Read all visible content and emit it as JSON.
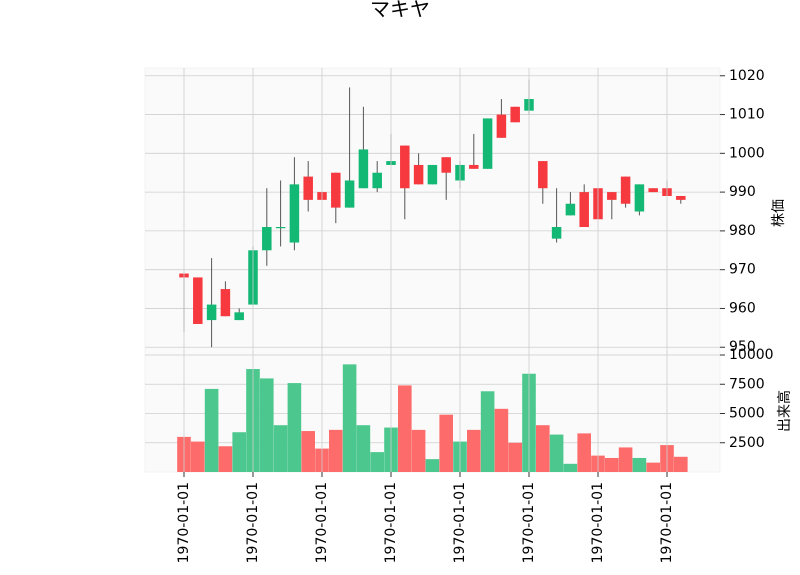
{
  "chart_data": {
    "type": "candlestick",
    "title": "マキヤ",
    "price_ylabel": "株価",
    "volume_ylabel": "出来高",
    "x_tick_labels": [
      "1970-01-01",
      "1970-01-01",
      "1970-01-01",
      "1970-01-01",
      "1970-01-01",
      "1970-01-01",
      "1970-01-01",
      "1970-01-01"
    ],
    "x_tick_positions": [
      0,
      5,
      10,
      15,
      20,
      25,
      30,
      35
    ],
    "price_ylim": [
      948,
      1022
    ],
    "price_yticks": [
      950,
      960,
      970,
      980,
      990,
      1000,
      1010,
      1020
    ],
    "volume_ylim": [
      0,
      10000
    ],
    "volume_yticks": [
      2500,
      5000,
      7500,
      10000
    ],
    "up_color": "#12b874",
    "down_color": "#f5393f",
    "volume_up_color": "#4cc88f",
    "volume_down_color": "#fe6b6b",
    "candles": [
      {
        "open": 969,
        "high": 969,
        "low": 954,
        "close": 968,
        "volume": 3000
      },
      {
        "open": 968,
        "high": 968,
        "low": 956,
        "close": 956,
        "volume": 2600
      },
      {
        "open": 957,
        "high": 973,
        "low": 950,
        "close": 961,
        "volume": 7100
      },
      {
        "open": 965,
        "high": 967,
        "low": 958,
        "close": 958,
        "volume": 2200
      },
      {
        "open": 957,
        "high": 960,
        "low": 957,
        "close": 959,
        "volume": 3400
      },
      {
        "open": 961,
        "high": 976,
        "low": 961,
        "close": 975,
        "volume": 8800
      },
      {
        "open": 975,
        "high": 991,
        "low": 971,
        "close": 981,
        "volume": 8000
      },
      {
        "open": 981,
        "high": 993,
        "low": 976,
        "close": 981,
        "volume": 4000
      },
      {
        "open": 977,
        "high": 999,
        "low": 975,
        "close": 992,
        "volume": 7600
      },
      {
        "open": 994,
        "high": 998,
        "low": 985,
        "close": 988,
        "volume": 3500
      },
      {
        "open": 990,
        "high": 990,
        "low": 988,
        "close": 988,
        "volume": 2000
      },
      {
        "open": 995,
        "high": 995,
        "low": 982,
        "close": 986,
        "volume": 3600
      },
      {
        "open": 986,
        "high": 1017,
        "low": 986,
        "close": 993,
        "volume": 9200
      },
      {
        "open": 991,
        "high": 1012,
        "low": 991,
        "close": 1001,
        "volume": 4000
      },
      {
        "open": 991,
        "high": 998,
        "low": 990,
        "close": 995,
        "volume": 1700
      },
      {
        "open": 997,
        "high": 1005,
        "low": 997,
        "close": 998,
        "volume": 3800
      },
      {
        "open": 1002,
        "high": 1002,
        "low": 983,
        "close": 991,
        "volume": 7400
      },
      {
        "open": 997,
        "high": 1000,
        "low": 992,
        "close": 992,
        "volume": 3600
      },
      {
        "open": 992,
        "high": 997,
        "low": 992,
        "close": 997,
        "volume": 1100
      },
      {
        "open": 999,
        "high": 999,
        "low": 988,
        "close": 995,
        "volume": 4900
      },
      {
        "open": 993,
        "high": 998,
        "low": 991,
        "close": 997,
        "volume": 2600
      },
      {
        "open": 997,
        "high": 1005,
        "low": 996,
        "close": 996,
        "volume": 3600
      },
      {
        "open": 996,
        "high": 1009,
        "low": 996,
        "close": 1009,
        "volume": 6900
      },
      {
        "open": 1010,
        "high": 1014,
        "low": 1004,
        "close": 1004,
        "volume": 5400
      },
      {
        "open": 1012,
        "high": 1012,
        "low": 1008,
        "close": 1008,
        "volume": 2500
      },
      {
        "open": 1011,
        "high": 1019,
        "low": 1010,
        "close": 1014,
        "volume": 8400
      },
      {
        "open": 998,
        "high": 998,
        "low": 987,
        "close": 991,
        "volume": 4000
      },
      {
        "open": 978,
        "high": 991,
        "low": 977,
        "close": 981,
        "volume": 3200
      },
      {
        "open": 984,
        "high": 990,
        "low": 984,
        "close": 987,
        "volume": 700
      },
      {
        "open": 990,
        "high": 992,
        "low": 981,
        "close": 981,
        "volume": 3300
      },
      {
        "open": 991,
        "high": 991,
        "low": 983,
        "close": 983,
        "volume": 1400
      },
      {
        "open": 990,
        "high": 990,
        "low": 983,
        "close": 988,
        "volume": 1200
      },
      {
        "open": 994,
        "high": 994,
        "low": 986,
        "close": 987,
        "volume": 2100
      },
      {
        "open": 985,
        "high": 992,
        "low": 984,
        "close": 992,
        "volume": 1200
      },
      {
        "open": 991,
        "high": 991,
        "low": 990,
        "close": 990,
        "volume": 800
      },
      {
        "open": 991,
        "high": 993,
        "low": 989,
        "close": 989,
        "volume": 2300
      },
      {
        "open": 989,
        "high": 989,
        "low": 987,
        "close": 988,
        "volume": 1300
      }
    ]
  }
}
